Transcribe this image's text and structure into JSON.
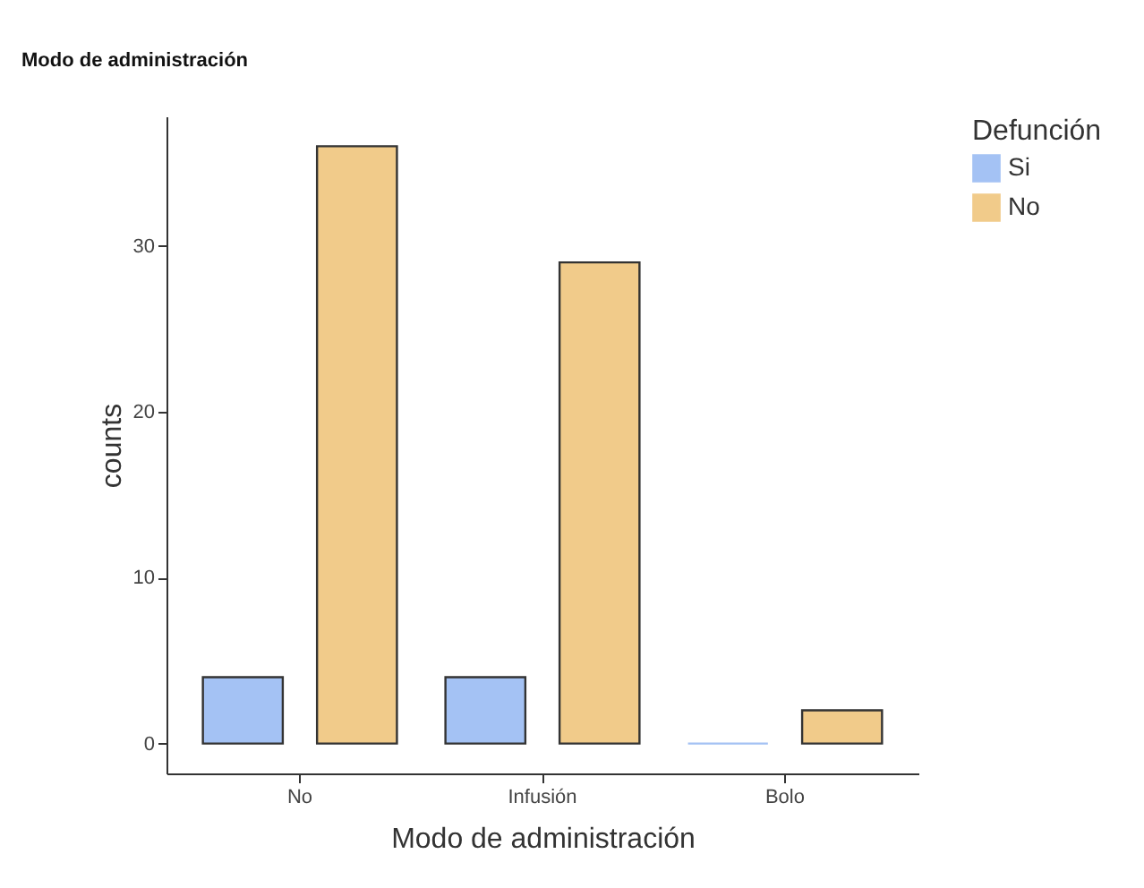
{
  "chart_data": {
    "type": "bar",
    "title": "Modo de administración",
    "xlabel": "Modo de administración",
    "ylabel": "counts",
    "legend_title": "Defunción",
    "legend": "right",
    "categories": [
      "No",
      "Infusión",
      "Bolo"
    ],
    "series": [
      {
        "name": "Si",
        "color": "#a4c2f4",
        "values": [
          4,
          4,
          0
        ]
      },
      {
        "name": "No",
        "color": "#f1cb8a",
        "values": [
          36,
          29,
          2
        ]
      }
    ],
    "ylim": [
      -1.8,
      37.8
    ],
    "yticks": [
      0,
      10,
      20,
      30
    ]
  }
}
